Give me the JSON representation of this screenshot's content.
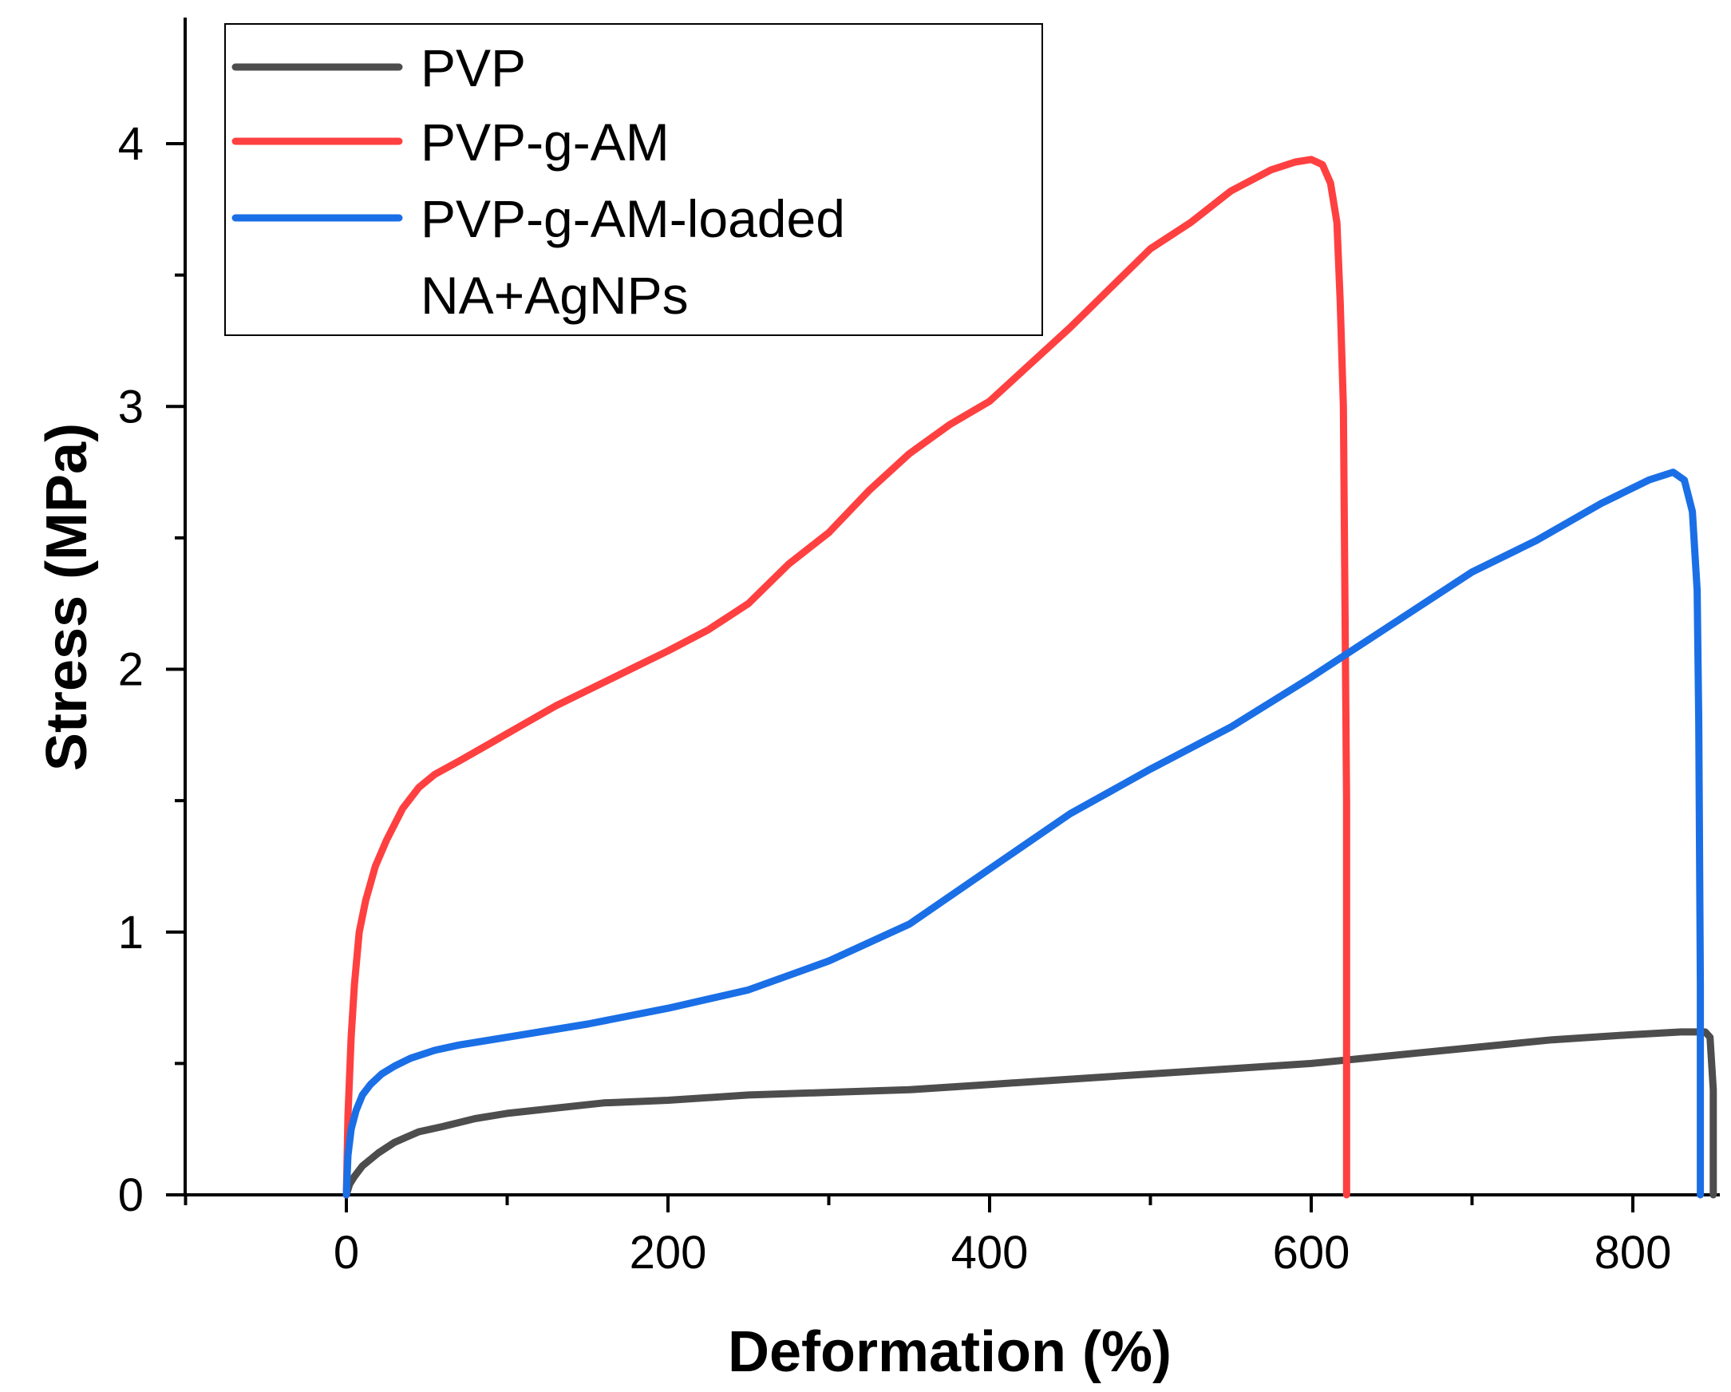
{
  "chart_data": {
    "type": "line",
    "title": "",
    "xlabel": "Deformation (%)",
    "ylabel": "Stress (MPa)",
    "xlim": [
      -100,
      860
    ],
    "ylim": [
      0,
      4.5
    ],
    "x_ticks": [
      0,
      200,
      400,
      600,
      800
    ],
    "x_tick_labels": [
      "0",
      "200",
      "400",
      "600",
      "800"
    ],
    "x_minor_ticks": [
      -100,
      100,
      300,
      500,
      700
    ],
    "y_ticks": [
      0,
      1,
      2,
      3,
      4
    ],
    "y_tick_labels": [
      "0",
      "1",
      "2",
      "3",
      "4"
    ],
    "y_minor_ticks": [
      0.5,
      1.5,
      2.5,
      3.5
    ],
    "grid": false,
    "legend_position": "top-left",
    "legend": [
      "PVP",
      "PVP-g-AM",
      "PVP-g-AM-loaded",
      "NA+AgNPs"
    ],
    "series": [
      {
        "name": "PVP",
        "color": "#4d4d4d",
        "x": [
          0,
          2,
          5,
          10,
          20,
          30,
          45,
          60,
          80,
          100,
          130,
          160,
          200,
          250,
          300,
          350,
          400,
          450,
          500,
          550,
          600,
          650,
          700,
          750,
          800,
          830,
          845,
          848,
          850,
          850
        ],
        "y": [
          0,
          0.04,
          0.07,
          0.11,
          0.16,
          0.2,
          0.24,
          0.26,
          0.29,
          0.31,
          0.33,
          0.35,
          0.36,
          0.38,
          0.39,
          0.4,
          0.42,
          0.44,
          0.46,
          0.48,
          0.5,
          0.53,
          0.56,
          0.59,
          0.61,
          0.62,
          0.62,
          0.6,
          0.4,
          0
        ]
      },
      {
        "name": "PVP-g-AM",
        "color": "#ff4040",
        "x": [
          0,
          1,
          3,
          5,
          8,
          12,
          18,
          25,
          35,
          45,
          55,
          70,
          90,
          110,
          130,
          160,
          180,
          200,
          225,
          250,
          275,
          300,
          325,
          350,
          375,
          400,
          425,
          450,
          475,
          500,
          525,
          550,
          575,
          590,
          600,
          607,
          612,
          616,
          618,
          620,
          622,
          622
        ],
        "y": [
          0,
          0.3,
          0.6,
          0.8,
          1.0,
          1.12,
          1.25,
          1.35,
          1.47,
          1.55,
          1.6,
          1.65,
          1.72,
          1.79,
          1.86,
          1.95,
          2.01,
          2.07,
          2.15,
          2.25,
          2.4,
          2.52,
          2.68,
          2.82,
          2.93,
          3.02,
          3.16,
          3.3,
          3.45,
          3.6,
          3.7,
          3.82,
          3.9,
          3.93,
          3.94,
          3.92,
          3.85,
          3.7,
          3.4,
          3.0,
          1.5,
          0
        ]
      },
      {
        "name": "PVP-g-AM-loaded NA+AgNPs",
        "color": "#1a6fe6",
        "x": [
          0,
          1,
          3,
          6,
          10,
          15,
          22,
          30,
          40,
          55,
          70,
          100,
          150,
          200,
          250,
          300,
          350,
          400,
          450,
          500,
          550,
          600,
          650,
          700,
          740,
          780,
          810,
          825,
          832,
          837,
          840,
          841,
          842,
          842
        ],
        "y": [
          0,
          0.15,
          0.25,
          0.32,
          0.38,
          0.42,
          0.46,
          0.49,
          0.52,
          0.55,
          0.57,
          0.6,
          0.65,
          0.71,
          0.78,
          0.89,
          1.03,
          1.24,
          1.45,
          1.62,
          1.78,
          1.97,
          2.17,
          2.37,
          2.49,
          2.63,
          2.72,
          2.75,
          2.72,
          2.6,
          2.3,
          1.8,
          0.8,
          0
        ]
      }
    ]
  }
}
